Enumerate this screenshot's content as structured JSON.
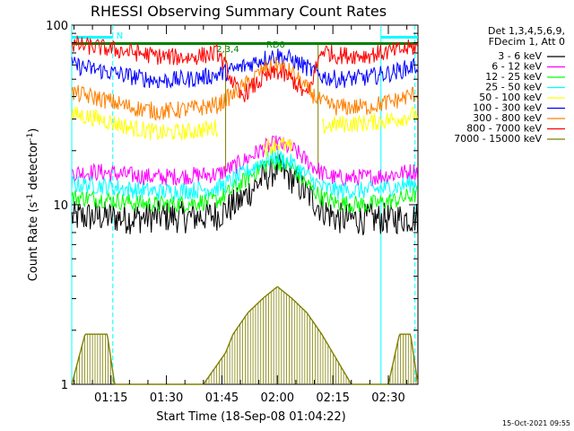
{
  "chart_data": {
    "type": "line",
    "title": "RHESSI Observing Summary Count Rates",
    "ylabel_main": "Count Rate (s",
    "ylabel_sup": "-1",
    "ylabel_tail": " detector",
    "ylabel_sup2": "-1",
    "ylabel_close": ")",
    "xlabel": "Start Time (18-Sep-08 01:04:22)",
    "stamp": "15-Oct-2021 09:55",
    "yscale": "log",
    "ylim": [
      1,
      100
    ],
    "xlim_minutes": [
      64.4,
      158
    ],
    "yticks": [
      {
        "value": 1,
        "label": "1"
      },
      {
        "value": 10,
        "label": "10"
      },
      {
        "value": 100,
        "label": "100"
      }
    ],
    "xticks": [
      {
        "minute": 75,
        "label": "01:15"
      },
      {
        "minute": 90,
        "label": "01:30"
      },
      {
        "minute": 105,
        "label": "01:45"
      },
      {
        "minute": 120,
        "label": "02:00"
      },
      {
        "minute": 135,
        "label": "02:15"
      },
      {
        "minute": 150,
        "label": "02:30"
      }
    ],
    "legend_header": [
      "Det 1,3,4,5,6,9,",
      "FDecim 1, Att 0"
    ],
    "series": [
      {
        "name": "3 - 6 keV",
        "color": "#000000",
        "x": [
          64.4,
          72,
          80,
          88,
          96,
          104,
          110,
          116,
          120,
          124,
          128,
          132,
          136,
          144,
          152,
          158
        ],
        "y": [
          8.5,
          8.6,
          8.4,
          8.6,
          8.5,
          8.8,
          10.5,
          14,
          16,
          14,
          11.5,
          9.5,
          8.4,
          8.3,
          8.4,
          8.5
        ]
      },
      {
        "name": "6 - 12 keV",
        "color": "#ff00ff",
        "x": [
          64.4,
          72,
          80,
          88,
          96,
          104,
          110,
          116,
          120,
          124,
          128,
          132,
          136,
          144,
          152,
          158
        ],
        "y": [
          15,
          15.2,
          14.6,
          14.2,
          14.5,
          14.8,
          17,
          20.5,
          22,
          20.5,
          17.5,
          15,
          14,
          14.2,
          14.8,
          15.5
        ]
      },
      {
        "name": "12 - 25 keV",
        "color": "#00ff00",
        "x": [
          64.4,
          72,
          80,
          88,
          96,
          104,
          110,
          116,
          120,
          124,
          128,
          132,
          136,
          144,
          152,
          158
        ],
        "y": [
          11,
          10.8,
          10.3,
          10,
          10.2,
          10.6,
          13,
          16.5,
          17.5,
          16,
          13,
          11,
          10.2,
          10,
          10.6,
          11.5
        ]
      },
      {
        "name": "25 - 50 keV",
        "color": "#00ffff",
        "x": [
          64.4,
          72,
          80,
          88,
          96,
          104,
          110,
          116,
          120,
          124,
          128,
          132,
          136,
          144,
          152,
          158
        ],
        "y": [
          13,
          12.8,
          12.2,
          11.8,
          12,
          12.4,
          14.5,
          17.5,
          18.5,
          17,
          14.5,
          12.5,
          12,
          12,
          12.6,
          13.3
        ]
      },
      {
        "name": "50 - 100 keV",
        "color": "#ffff00",
        "x": [
          64.4,
          72,
          80,
          88,
          96,
          104,
          110,
          116,
          120,
          124,
          128,
          132,
          136,
          144,
          152,
          158
        ],
        "y": [
          32,
          30,
          27,
          25,
          25.5,
          27,
          null,
          20.5,
          22,
          20.5,
          null,
          27,
          28,
          28.5,
          30,
          32
        ]
      },
      {
        "name": "100 - 300 keV",
        "color": "#0000ff",
        "x": [
          64.4,
          72,
          80,
          88,
          96,
          104,
          110,
          116,
          120,
          124,
          128,
          132,
          136,
          144,
          152,
          158
        ],
        "y": [
          60,
          56,
          52,
          49,
          50,
          53,
          58,
          65,
          68,
          64,
          58,
          52,
          50,
          51,
          55,
          60
        ]
      },
      {
        "name": "300 - 800 keV",
        "color": "#ff8000",
        "x": [
          64.4,
          72,
          80,
          88,
          96,
          104,
          110,
          116,
          120,
          124,
          128,
          132,
          136,
          144,
          152,
          158
        ],
        "y": [
          42,
          39,
          35,
          33,
          34,
          36,
          44,
          56,
          60,
          54,
          44,
          37,
          35,
          35,
          38,
          42
        ]
      },
      {
        "name": "800 - 7000 keV",
        "color": "#ff0000",
        "x": [
          64.4,
          72,
          80,
          88,
          96,
          104,
          110,
          116,
          120,
          124,
          128,
          132,
          136,
          144,
          152,
          158
        ],
        "y": [
          78,
          75,
          71,
          67,
          66,
          70,
          40,
          50,
          55,
          50,
          40,
          73,
          68,
          68,
          72,
          76
        ]
      },
      {
        "name": "7000 - 15000 keV",
        "color": "#808000",
        "x": [
          64.4,
          68,
          72,
          74,
          76,
          80,
          90,
          100,
          106,
          108,
          112,
          116,
          120,
          124,
          128,
          132,
          140,
          150,
          153,
          156,
          158
        ],
        "y": [
          1,
          1.9,
          1.9,
          1.9,
          1,
          1,
          1,
          1,
          1.5,
          1.9,
          2.5,
          3,
          3.5,
          3,
          2.5,
          1.9,
          1,
          1,
          1.9,
          1.9,
          1
        ]
      }
    ],
    "annotations": [
      {
        "text": "N",
        "color": "#00ffff",
        "x0": 64.4,
        "x1": 75.5
      },
      {
        "text": "N",
        "color": "#00ffff",
        "x0": 148,
        "x1": 158
      },
      {
        "text": "RD0",
        "color": "#008000",
        "x0": 64.4,
        "x1": 158
      },
      {
        "text": "2,3,4",
        "color": "#008000",
        "x0": 106.5,
        "x1": 108
      }
    ],
    "vlines_cyan_solid": [
      64.4,
      148
    ],
    "vlines_cyan_dashed": [
      75.5,
      157.2
    ],
    "vlines_olive": [
      106,
      131
    ]
  }
}
